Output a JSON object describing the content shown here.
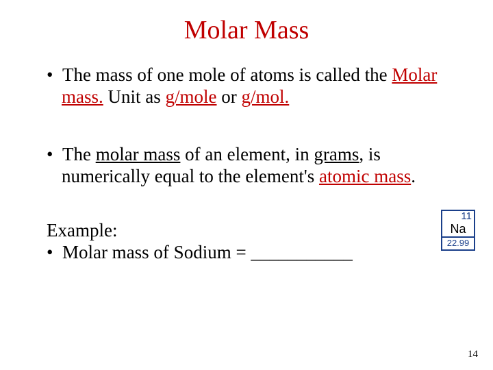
{
  "title": "Molar Mass",
  "title_color": "#c00000",
  "bullets": {
    "b1_p1": "The mass of one mole of atoms is called the ",
    "b1_red1": "Molar mass.",
    "b1_p2": " Unit as ",
    "b1_red2": "g/mole",
    "b1_p3": " or ",
    "b1_red3": "g/mol.",
    "b2_p1": "The ",
    "b2_u1": "molar mass",
    "b2_p2": " of an element, in ",
    "b2_u2": "grams",
    "b2_p3": ", is numerically equal to the element's ",
    "b2_red1": "atomic mass",
    "b2_p4": "."
  },
  "example": {
    "label": "Example:",
    "line": "Molar mass of Sodium = ___________"
  },
  "element": {
    "atomic_number": "11",
    "symbol": "Na",
    "mass": "22.99",
    "border_color": "#1a3f8a",
    "text_color": "#1a3f8a"
  },
  "page_number": "14",
  "colors": {
    "emphasis": "#c00000",
    "background": "#ffffff",
    "text": "#000000"
  }
}
